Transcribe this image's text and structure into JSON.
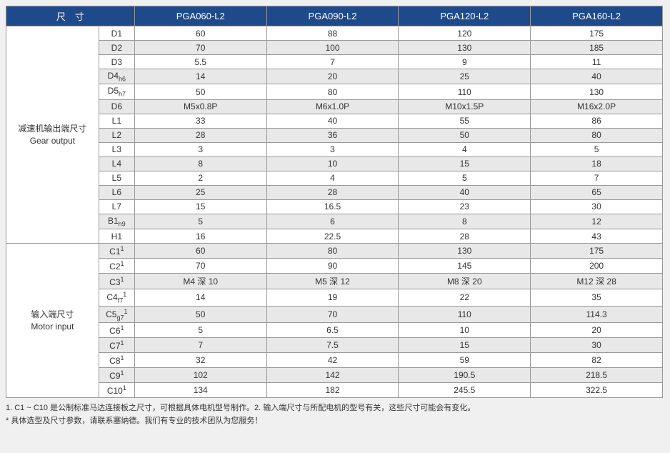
{
  "header": {
    "dim_label": "尺　寸",
    "models": [
      "PGA060-L2",
      "PGA090-L2",
      "PGA120-L2",
      "PGA160-L2"
    ]
  },
  "sections": [
    {
      "label_cn": "减速机输出端尺寸",
      "label_en": "Gear output",
      "rows": [
        {
          "p": "D1",
          "sub": "",
          "sup": "",
          "v": [
            "60",
            "88",
            "120",
            "175"
          ]
        },
        {
          "p": "D2",
          "sub": "",
          "sup": "",
          "v": [
            "70",
            "100",
            "130",
            "185"
          ]
        },
        {
          "p": "D3",
          "sub": "",
          "sup": "",
          "v": [
            "5.5",
            "7",
            "9",
            "11"
          ]
        },
        {
          "p": "D4",
          "sub": "h6",
          "sup": "",
          "v": [
            "14",
            "20",
            "25",
            "40"
          ]
        },
        {
          "p": "D5",
          "sub": "h7",
          "sup": "",
          "v": [
            "50",
            "80",
            "110",
            "130"
          ]
        },
        {
          "p": "D6",
          "sub": "",
          "sup": "",
          "v": [
            "M5x0.8P",
            "M6x1.0P",
            "M10x1.5P",
            "M16x2.0P"
          ]
        },
        {
          "p": "L1",
          "sub": "",
          "sup": "",
          "v": [
            "33",
            "40",
            "55",
            "86"
          ]
        },
        {
          "p": "L2",
          "sub": "",
          "sup": "",
          "v": [
            "28",
            "36",
            "50",
            "80"
          ]
        },
        {
          "p": "L3",
          "sub": "",
          "sup": "",
          "v": [
            "3",
            "3",
            "4",
            "5"
          ]
        },
        {
          "p": "L4",
          "sub": "",
          "sup": "",
          "v": [
            "8",
            "10",
            "15",
            "18"
          ]
        },
        {
          "p": "L5",
          "sub": "",
          "sup": "",
          "v": [
            "2",
            "4",
            "5",
            "7"
          ]
        },
        {
          "p": "L6",
          "sub": "",
          "sup": "",
          "v": [
            "25",
            "28",
            "40",
            "65"
          ]
        },
        {
          "p": "L7",
          "sub": "",
          "sup": "",
          "v": [
            "15",
            "16.5",
            "23",
            "30"
          ]
        },
        {
          "p": "B1",
          "sub": "h9",
          "sup": "",
          "v": [
            "5",
            "6",
            "8",
            "12"
          ]
        },
        {
          "p": "H1",
          "sub": "",
          "sup": "",
          "v": [
            "16",
            "22.5",
            "28",
            "43"
          ]
        }
      ]
    },
    {
      "label_cn": "输入端尺寸",
      "label_en": "Motor input",
      "rows": [
        {
          "p": "C1",
          "sub": "",
          "sup": "1",
          "v": [
            "60",
            "80",
            "130",
            "175"
          ]
        },
        {
          "p": "C2",
          "sub": "",
          "sup": "1",
          "v": [
            "70",
            "90",
            "145",
            "200"
          ]
        },
        {
          "p": "C3",
          "sub": "",
          "sup": "1",
          "v": [
            "M4 深 10",
            "M5 深 12",
            "M8 深 20",
            "M12 深 28"
          ]
        },
        {
          "p": "C4",
          "sub": "f7",
          "sup": "1",
          "v": [
            "14",
            "19",
            "22",
            "35"
          ]
        },
        {
          "p": "C5",
          "sub": "g7",
          "sup": "1",
          "v": [
            "50",
            "70",
            "110",
            "114.3"
          ]
        },
        {
          "p": "C6",
          "sub": "",
          "sup": "1",
          "v": [
            "5",
            "6.5",
            "10",
            "20"
          ]
        },
        {
          "p": "C7",
          "sub": "",
          "sup": "1",
          "v": [
            "7",
            "7.5",
            "15",
            "30"
          ]
        },
        {
          "p": "C8",
          "sub": "",
          "sup": "1",
          "v": [
            "32",
            "42",
            "59",
            "82"
          ]
        },
        {
          "p": "C9",
          "sub": "",
          "sup": "1",
          "v": [
            "102",
            "142",
            "190.5",
            "218.5"
          ]
        },
        {
          "p": "C10",
          "sub": "",
          "sup": "1",
          "v": [
            "134",
            "182",
            "245.5",
            "322.5"
          ]
        }
      ]
    }
  ],
  "footnotes": [
    "1. C1 ~ C10 是公制标准马达连接板之尺寸，可根据具体电机型号制作。2. 输入端尺寸与所配电机的型号有关，这些尺寸可能会有变化。",
    "* 具体选型及尺寸参数，请联系塞纳德。我们有专业的技术团队为您服务！"
  ]
}
